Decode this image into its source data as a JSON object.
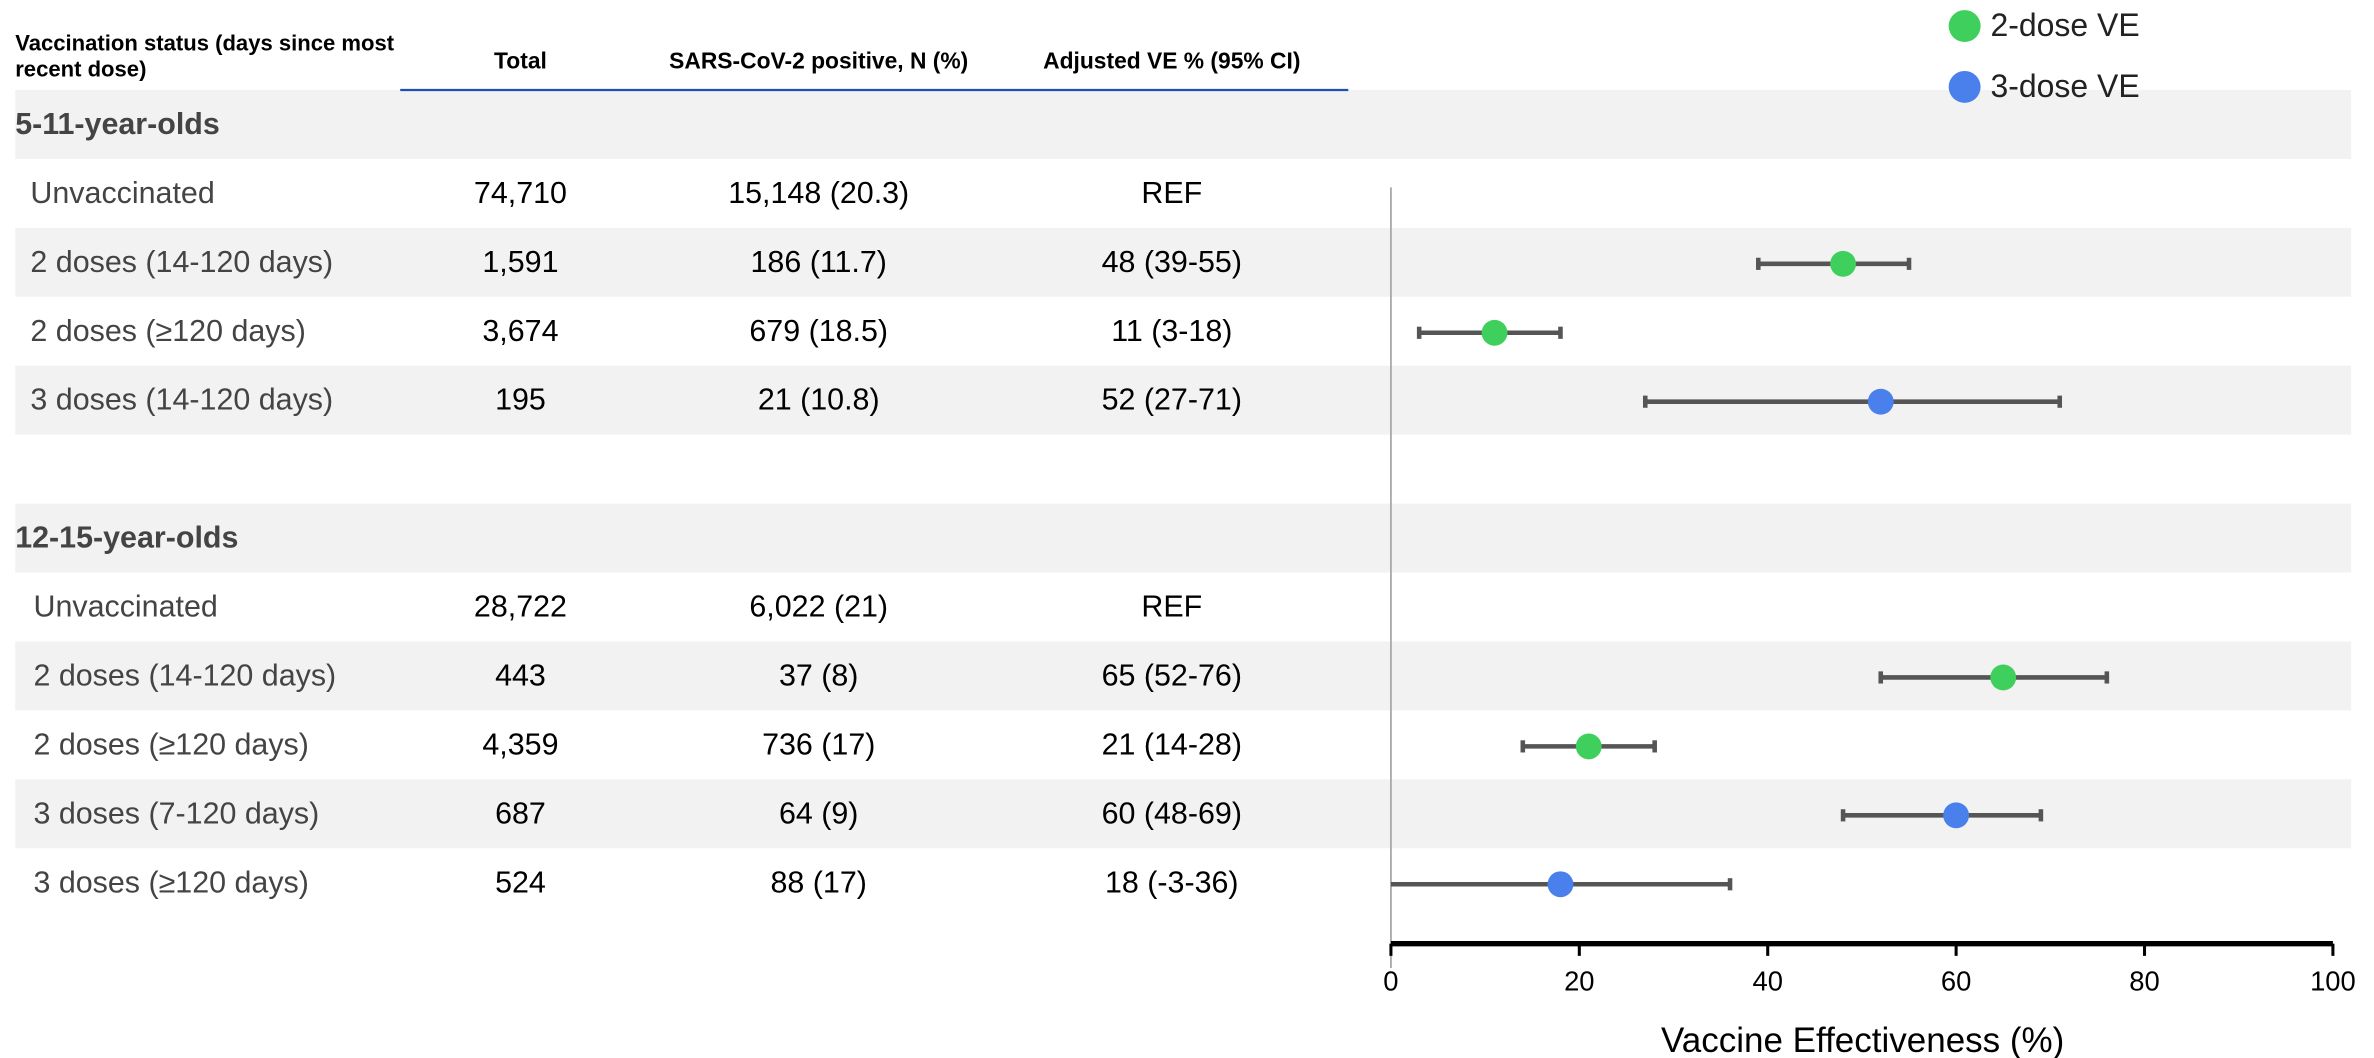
{
  "chart_data": {
    "type": "forest",
    "columns": [
      "Vaccination status (days since most recent dose)",
      "Total",
      "SARS-CoV-2 positive, N (%)",
      "Adjusted VE % (95% CI)"
    ],
    "groups": [
      {
        "name": "5-11-year-olds",
        "rows": [
          {
            "label": "Unvaccinated",
            "total": "74,710",
            "positive": "15,148 (20.3)",
            "ve": "REF"
          },
          {
            "label": "2 doses (14-120 days)",
            "total": "1,591",
            "positive": "186 (11.7)",
            "ve": "48 (39-55)"
          },
          {
            "label": "2 doses (≥120 days)",
            "total": "3,674",
            "positive": "679 (18.5)",
            "ve": "11 (3-18)"
          },
          {
            "label": "3 doses (14-120 days)",
            "total": "195",
            "positive": "21 (10.8)",
            "ve": "52 (27-71)"
          }
        ]
      },
      {
        "name": "12-15-year-olds",
        "rows": [
          {
            "label": "Unvaccinated",
            "total": "28,722",
            "positive": "6,022 (21)",
            "ve": "REF"
          },
          {
            "label": "2 doses (14-120 days)",
            "total": "443",
            "positive": "37 (8)",
            "ve": "65 (52-76)"
          },
          {
            "label": "2 doses (≥120 days)",
            "total": "4,359",
            "positive": "736 (17)",
            "ve": "21 (14-28)"
          },
          {
            "label": "3 doses (7-120 days)",
            "total": "687",
            "positive": "64 (9)",
            "ve": "60 (48-69)"
          },
          {
            "label": "3 doses (≥120 days)",
            "total": "524",
            "positive": "88 (17)",
            "ve": "18 (-3-36)"
          }
        ]
      }
    ],
    "series": [
      {
        "name": "2-dose VE",
        "color": "#3ecf5c",
        "values": [
          null,
          48,
          11,
          null,
          null,
          65,
          21,
          null,
          null
        ],
        "lower": [
          null,
          39,
          3,
          null,
          null,
          52,
          14,
          null,
          null
        ],
        "upper": [
          null,
          55,
          18,
          null,
          null,
          76,
          28,
          null,
          null
        ]
      },
      {
        "name": "3-dose VE",
        "color": "#4a80ec",
        "values": [
          null,
          null,
          null,
          52,
          null,
          null,
          null,
          60,
          18
        ],
        "lower": [
          null,
          null,
          null,
          27,
          null,
          null,
          null,
          48,
          -3
        ],
        "upper": [
          null,
          null,
          null,
          71,
          null,
          null,
          null,
          69,
          36
        ]
      }
    ],
    "xlabel": "Vaccine Effectiveness (%)",
    "xlim": [
      0,
      100
    ],
    "xticks": [
      0,
      20,
      40,
      60,
      80,
      100
    ]
  }
}
